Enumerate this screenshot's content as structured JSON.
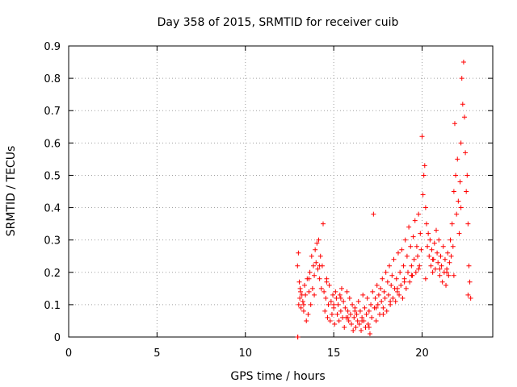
{
  "chart_data": {
    "type": "scatter",
    "title": "Day 358 of 2015, SRMTID for receiver cuib",
    "xlabel": "GPS time / hours",
    "ylabel": "SRMTID / TECUs",
    "xlim": [
      0,
      24
    ],
    "ylim": [
      0,
      0.9
    ],
    "xticks": [
      0,
      5,
      10,
      15,
      20
    ],
    "xtick_labels": [
      "0",
      "5",
      "10",
      "15",
      "20"
    ],
    "yticks": [
      0,
      0.1,
      0.2,
      0.3,
      0.4,
      0.5,
      0.6,
      0.7,
      0.8,
      0.9
    ],
    "ytick_labels": [
      "0",
      "0.1",
      "0.2",
      "0.3",
      "0.4",
      "0.5",
      "0.6",
      "0.7",
      "0.8",
      "0.9"
    ],
    "grid": true,
    "marker": "+",
    "color": "#ff0000",
    "series": [
      {
        "name": "SRMTID",
        "x": [
          12.95,
          12.97,
          13.0,
          13.02,
          13.05,
          13.08,
          13.12,
          13.15,
          13.2,
          13.25,
          13.3,
          13.35,
          13.4,
          13.45,
          13.5,
          13.55,
          13.6,
          13.65,
          13.7,
          13.75,
          13.8,
          13.85,
          13.9,
          13.95,
          14.0,
          14.05,
          14.1,
          14.15,
          14.2,
          14.25,
          14.3,
          14.35,
          14.4,
          14.45,
          14.5,
          14.55,
          14.6,
          14.65,
          14.7,
          14.75,
          14.8,
          14.85,
          14.9,
          14.95,
          15.0,
          15.05,
          15.1,
          15.15,
          15.2,
          15.25,
          15.3,
          15.35,
          15.4,
          15.45,
          15.5,
          15.55,
          15.6,
          15.65,
          15.7,
          15.75,
          15.8,
          15.85,
          15.9,
          15.95,
          16.0,
          16.05,
          16.1,
          16.15,
          16.2,
          16.25,
          16.3,
          16.35,
          16.4,
          16.45,
          16.5,
          16.55,
          16.6,
          16.65,
          16.7,
          16.75,
          16.8,
          16.85,
          16.9,
          16.95,
          17.0,
          17.05,
          17.1,
          17.15,
          17.2,
          17.25,
          17.3,
          17.35,
          17.4,
          17.45,
          17.5,
          17.55,
          17.6,
          17.65,
          17.7,
          17.75,
          17.8,
          17.85,
          17.9,
          17.95,
          18.0,
          18.05,
          18.1,
          18.15,
          18.2,
          18.25,
          18.3,
          18.35,
          18.4,
          18.45,
          18.5,
          18.55,
          18.6,
          18.65,
          18.7,
          18.75,
          18.8,
          18.85,
          18.9,
          18.95,
          19.0,
          19.05,
          19.1,
          19.15,
          19.2,
          19.25,
          19.3,
          19.35,
          19.4,
          19.45,
          19.5,
          19.55,
          19.6,
          19.65,
          19.7,
          19.75,
          19.8,
          19.85,
          19.9,
          19.95,
          20.0,
          20.05,
          20.1,
          20.15,
          20.2,
          20.25,
          20.3,
          20.35,
          20.4,
          20.45,
          20.5,
          20.55,
          20.6,
          20.65,
          20.7,
          20.75,
          20.8,
          20.85,
          20.9,
          20.95,
          21.0,
          21.05,
          21.1,
          21.15,
          21.2,
          21.25,
          21.3,
          21.35,
          21.4,
          21.45,
          21.5,
          21.55,
          21.6,
          21.65,
          21.7,
          21.75,
          21.8,
          21.85,
          21.9,
          21.95,
          22.0,
          22.05,
          22.1,
          22.15,
          22.2,
          22.25,
          22.3,
          22.35,
          22.4,
          22.45,
          22.5,
          22.55,
          22.6,
          22.65,
          22.7,
          22.75,
          12.96,
          13.1,
          13.3,
          13.6,
          13.9,
          14.2,
          14.6,
          15.0,
          15.4,
          15.8,
          16.2,
          16.6,
          17.0,
          17.4,
          17.8,
          18.2,
          18.6,
          19.0,
          19.4,
          19.8,
          20.2,
          20.6,
          21.0,
          21.4,
          21.8,
          22.2,
          22.6
        ],
        "y": [
          0.22,
          0.0,
          0.26,
          0.1,
          0.17,
          0.12,
          0.14,
          0.09,
          0.13,
          0.11,
          0.08,
          0.16,
          0.13,
          0.05,
          0.18,
          0.07,
          0.14,
          0.2,
          0.1,
          0.25,
          0.15,
          0.22,
          0.19,
          0.27,
          0.23,
          0.29,
          0.21,
          0.3,
          0.18,
          0.25,
          0.15,
          0.22,
          0.35,
          0.14,
          0.08,
          0.12,
          0.18,
          0.06,
          0.1,
          0.16,
          0.05,
          0.11,
          0.07,
          0.13,
          0.09,
          0.04,
          0.14,
          0.12,
          0.07,
          0.1,
          0.05,
          0.13,
          0.08,
          0.15,
          0.06,
          0.11,
          0.03,
          0.09,
          0.06,
          0.14,
          0.08,
          0.05,
          0.12,
          0.07,
          0.04,
          0.1,
          0.02,
          0.06,
          0.09,
          0.03,
          0.07,
          0.05,
          0.11,
          0.04,
          0.08,
          0.02,
          0.06,
          0.13,
          0.05,
          0.09,
          0.03,
          0.07,
          0.12,
          0.04,
          0.08,
          0.01,
          0.1,
          0.06,
          0.14,
          0.38,
          0.09,
          0.12,
          0.05,
          0.16,
          0.1,
          0.13,
          0.07,
          0.15,
          0.11,
          0.18,
          0.09,
          0.14,
          0.12,
          0.2,
          0.08,
          0.17,
          0.13,
          0.22,
          0.1,
          0.16,
          0.19,
          0.12,
          0.24,
          0.15,
          0.11,
          0.18,
          0.14,
          0.26,
          0.13,
          0.2,
          0.16,
          0.27,
          0.12,
          0.22,
          0.18,
          0.3,
          0.15,
          0.25,
          0.2,
          0.34,
          0.17,
          0.28,
          0.22,
          0.19,
          0.31,
          0.24,
          0.36,
          0.2,
          0.28,
          0.25,
          0.38,
          0.22,
          0.32,
          0.27,
          0.62,
          0.44,
          0.5,
          0.53,
          0.4,
          0.35,
          0.28,
          0.32,
          0.25,
          0.3,
          0.22,
          0.27,
          0.2,
          0.24,
          0.29,
          0.21,
          0.33,
          0.26,
          0.23,
          0.3,
          0.19,
          0.25,
          0.22,
          0.17,
          0.28,
          0.2,
          0.24,
          0.16,
          0.21,
          0.26,
          0.19,
          0.23,
          0.3,
          0.25,
          0.35,
          0.28,
          0.45,
          0.66,
          0.5,
          0.38,
          0.55,
          0.42,
          0.32,
          0.48,
          0.6,
          0.8,
          0.72,
          0.85,
          0.68,
          0.57,
          0.45,
          0.5,
          0.35,
          0.22,
          0.17,
          0.12,
          0.0,
          0.15,
          0.1,
          0.18,
          0.13,
          0.22,
          0.17,
          0.1,
          0.12,
          0.06,
          0.08,
          0.05,
          0.03,
          0.09,
          0.07,
          0.11,
          0.15,
          0.17,
          0.19,
          0.21,
          0.18,
          0.24,
          0.21,
          0.2,
          0.19,
          0.4,
          0.13
        ]
      }
    ]
  }
}
